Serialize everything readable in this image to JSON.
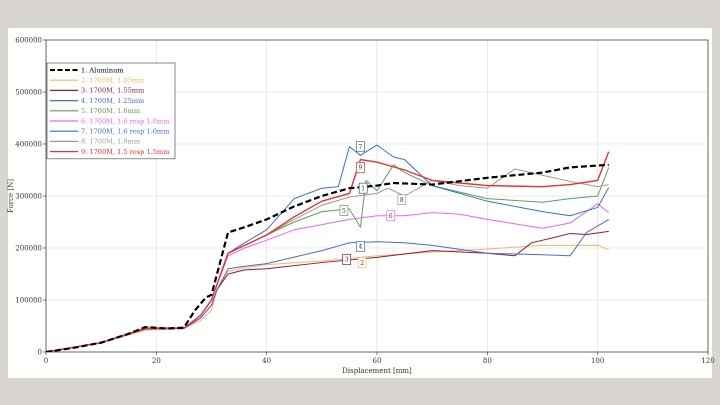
{
  "colors": {
    "page_bg": "#d9d6d2",
    "plot_bg": "#ffffff",
    "grid": "#d8d8d8",
    "axis": "#444444"
  },
  "chart_data": {
    "type": "line",
    "title": "",
    "xlabel": "Displacement [mm]",
    "ylabel": "Force [N]",
    "xlim": [
      0,
      120
    ],
    "ylim": [
      0,
      600000
    ],
    "xticks": [
      0,
      20,
      40,
      60,
      80,
      100,
      120
    ],
    "yticks": [
      0,
      100000,
      200000,
      300000,
      400000,
      500000,
      600000
    ],
    "grid": true,
    "legend_position": "top-left",
    "series": [
      {
        "name": "1. Aluminum",
        "color": "#000000",
        "dash": "6,3",
        "width": 2.2,
        "label": "1",
        "x": [
          0,
          5,
          10,
          15,
          18,
          22,
          25,
          27,
          29,
          30,
          31,
          33,
          36,
          40,
          45,
          50,
          55,
          60,
          63,
          70,
          80,
          90,
          95,
          102
        ],
        "y": [
          0,
          8000,
          18000,
          35000,
          48000,
          45000,
          47000,
          80000,
          105000,
          110000,
          150000,
          230000,
          240000,
          255000,
          280000,
          300000,
          315000,
          320000,
          325000,
          322000,
          335000,
          345000,
          355000,
          360000
        ]
      },
      {
        "name": "2. 1700M, 1.05mm",
        "color": "#f4b860",
        "dash": "",
        "width": 1,
        "label": "2",
        "x": [
          0,
          10,
          18,
          25,
          28,
          30,
          31,
          33,
          36,
          40,
          50,
          60,
          70,
          80,
          90,
          100,
          102
        ],
        "y": [
          0,
          18000,
          42000,
          45000,
          60000,
          80000,
          120000,
          155000,
          162000,
          168000,
          175000,
          185000,
          192000,
          198000,
          205000,
          205000,
          197000
        ]
      },
      {
        "name": "3. 1700M, 1.55mm",
        "color": "#8c1c3c",
        "dash": "",
        "width": 1,
        "label": "3",
        "x": [
          0,
          10,
          18,
          25,
          28,
          30,
          31,
          33,
          36,
          40,
          50,
          60,
          70,
          80,
          85,
          88,
          92,
          95,
          98,
          102
        ],
        "y": [
          0,
          18000,
          44000,
          46000,
          65000,
          90000,
          120000,
          150000,
          158000,
          160000,
          172000,
          182000,
          195000,
          190000,
          185000,
          210000,
          220000,
          228000,
          226000,
          232000
        ]
      },
      {
        "name": "4. 1700M, 1.25mm",
        "color": "#4a6cc8",
        "dash": "",
        "width": 1,
        "label": "4",
        "x": [
          0,
          10,
          18,
          25,
          28,
          30,
          31,
          33,
          36,
          40,
          50,
          55,
          60,
          65,
          70,
          80,
          90,
          95,
          98,
          102
        ],
        "y": [
          0,
          18000,
          45000,
          45000,
          65000,
          90000,
          120000,
          160000,
          165000,
          170000,
          195000,
          210000,
          212000,
          210000,
          205000,
          190000,
          187000,
          185000,
          230000,
          255000
        ]
      },
      {
        "name": "5. 1700M, 1.6mm",
        "color": "#5aa05a",
        "dash": "",
        "width": 1,
        "label": "5",
        "x": [
          0,
          10,
          18,
          25,
          28,
          30,
          31,
          33,
          36,
          40,
          45,
          50,
          55,
          57,
          58,
          60,
          63,
          65,
          70,
          80,
          90,
          95,
          100,
          102
        ],
        "y": [
          0,
          18000,
          46000,
          46000,
          70000,
          100000,
          130000,
          190000,
          205000,
          225000,
          250000,
          270000,
          275000,
          240000,
          330000,
          310000,
          360000,
          345000,
          320000,
          295000,
          288000,
          295000,
          300000,
          355000
        ]
      },
      {
        "name": "6. 1700M, 1.6 resp 1.0mm",
        "color": "#ee66ee",
        "dash": "",
        "width": 1,
        "label": "6",
        "x": [
          0,
          10,
          18,
          25,
          28,
          30,
          31,
          33,
          36,
          40,
          45,
          50,
          55,
          60,
          65,
          70,
          75,
          80,
          90,
          95,
          100,
          102
        ],
        "y": [
          0,
          18000,
          45000,
          45000,
          70000,
          100000,
          130000,
          185000,
          200000,
          215000,
          235000,
          245000,
          255000,
          262000,
          262000,
          268000,
          265000,
          255000,
          238000,
          248000,
          285000,
          268000
        ]
      },
      {
        "name": "7. 1700M, 1.6 resp 1.0mm",
        "color": "#3870cc",
        "dash": "",
        "width": 1,
        "label": "7",
        "x": [
          0,
          10,
          18,
          25,
          28,
          30,
          31,
          33,
          36,
          40,
          45,
          50,
          53,
          55,
          57,
          58,
          60,
          63,
          65,
          70,
          80,
          90,
          95,
          100,
          102
        ],
        "y": [
          0,
          18000,
          46000,
          46000,
          70000,
          100000,
          130000,
          190000,
          210000,
          235000,
          295000,
          315000,
          318000,
          395000,
          378000,
          385000,
          398000,
          375000,
          370000,
          320000,
          290000,
          270000,
          262000,
          278000,
          316000
        ]
      },
      {
        "name": "8. 1700M, 1.9mm",
        "color": "#9a9a9a",
        "dash": "",
        "width": 1,
        "label": "8",
        "x": [
          0,
          10,
          18,
          25,
          28,
          30,
          31,
          33,
          36,
          40,
          45,
          50,
          55,
          60,
          62,
          65,
          70,
          75,
          80,
          85,
          90,
          95,
          100,
          102
        ],
        "y": [
          0,
          18000,
          46000,
          46000,
          70000,
          100000,
          130000,
          190000,
          205000,
          225000,
          255000,
          282000,
          298000,
          305000,
          315000,
          300000,
          330000,
          320000,
          315000,
          352000,
          340000,
          328000,
          318000,
          322000
        ]
      },
      {
        "name": "9. 1700M, 1.5 resp 1.5mm",
        "color": "#e83030",
        "dash": "",
        "width": 1.4,
        "label": "9",
        "x": [
          0,
          10,
          18,
          25,
          28,
          30,
          31,
          33,
          36,
          40,
          45,
          50,
          55,
          57,
          60,
          65,
          70,
          75,
          80,
          90,
          95,
          100,
          102
        ],
        "y": [
          0,
          18000,
          46000,
          46000,
          70000,
          100000,
          130000,
          190000,
          205000,
          225000,
          260000,
          290000,
          305000,
          370000,
          365000,
          350000,
          330000,
          325000,
          320000,
          318000,
          322000,
          330000,
          385000
        ]
      }
    ],
    "label_markers": [
      {
        "text": "1",
        "x": 57.5,
        "y": 315000,
        "series": 0
      },
      {
        "text": "2",
        "x": 57.3,
        "y": 172000,
        "series": 1
      },
      {
        "text": "3",
        "x": 54.5,
        "y": 178000,
        "series": 2
      },
      {
        "text": "4",
        "x": 57.0,
        "y": 203000,
        "series": 3
      },
      {
        "text": "5",
        "x": 54.0,
        "y": 272000,
        "series": 4
      },
      {
        "text": "6",
        "x": 62.5,
        "y": 262000,
        "series": 5
      },
      {
        "text": "7",
        "x": 57.0,
        "y": 395000,
        "series": 6
      },
      {
        "text": "8",
        "x": 64.5,
        "y": 293000,
        "series": 7
      },
      {
        "text": "9",
        "x": 57.0,
        "y": 355000,
        "series": 8
      }
    ]
  }
}
